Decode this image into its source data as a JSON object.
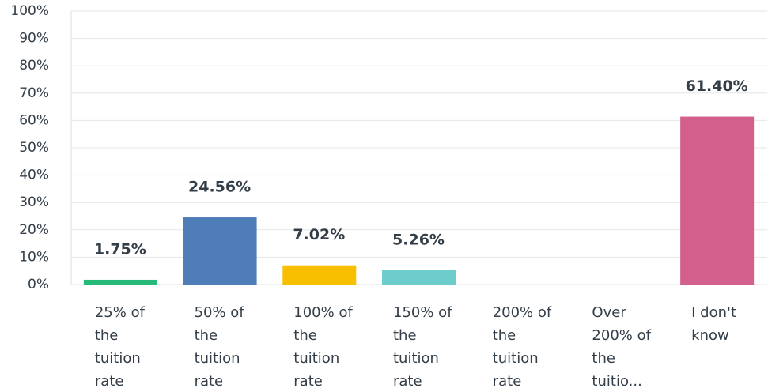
{
  "chart_data": {
    "type": "bar",
    "categories": [
      "25% of the tuition rate",
      "50% of the tuition rate",
      "100% of the tuition rate",
      "150% of the tuition rate",
      "200% of the tuition rate",
      "Over 200% of the tuitio...",
      "I don't know"
    ],
    "values": [
      1.75,
      24.56,
      7.02,
      5.26,
      0,
      0,
      61.4
    ],
    "value_labels": [
      "1.75%",
      "24.56%",
      "7.02%",
      "5.26%",
      null,
      null,
      "61.40%"
    ],
    "colors": [
      "#26b97a",
      "#4f7db8",
      "#f8bf00",
      "#6dcccc",
      "#9e9e9e",
      "#9e9e9e",
      "#d35f8d"
    ],
    "ylim": [
      0,
      100
    ],
    "yticks": [
      {
        "value": 0,
        "label": "0%"
      },
      {
        "value": 10,
        "label": "10%"
      },
      {
        "value": 20,
        "label": "20%"
      },
      {
        "value": 30,
        "label": "30%"
      },
      {
        "value": 40,
        "label": "40%"
      },
      {
        "value": 50,
        "label": "50%"
      },
      {
        "value": 60,
        "label": "60%"
      },
      {
        "value": 70,
        "label": "70%"
      },
      {
        "value": 80,
        "label": "80%"
      },
      {
        "value": 90,
        "label": "90%"
      },
      {
        "value": 100,
        "label": "100%"
      }
    ],
    "grid": true
  }
}
